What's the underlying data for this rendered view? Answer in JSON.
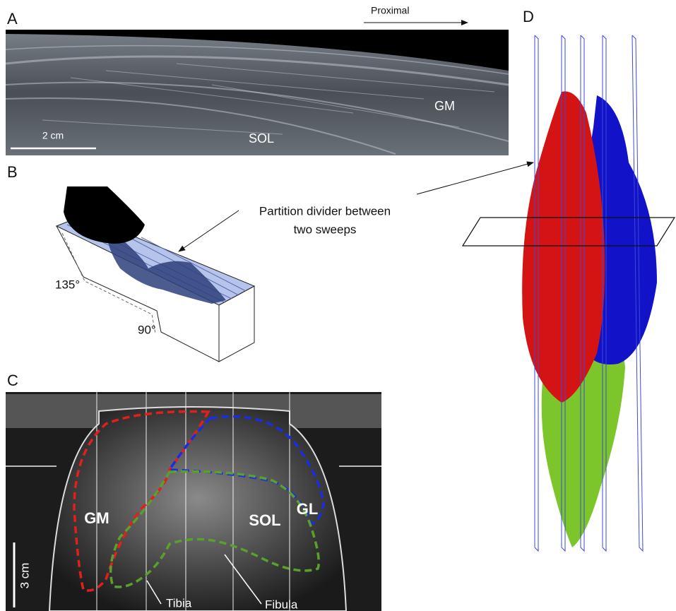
{
  "panels": [
    {
      "label": "A",
      "direction": "Proximal",
      "labels": [
        "GM",
        "SOL"
      ],
      "scale_bar": "2 cm"
    },
    {
      "label": "B",
      "annotation": [
        "Partition divider between",
        "two sweeps"
      ],
      "angles": [
        "135°",
        "90°"
      ]
    },
    {
      "label": "C",
      "labels": [
        "GM",
        "GL",
        "SOL"
      ],
      "scale_bar": "3 cm",
      "bones": [
        "Tibia",
        "Fibula"
      ]
    },
    {
      "label": "D"
    }
  ]
}
